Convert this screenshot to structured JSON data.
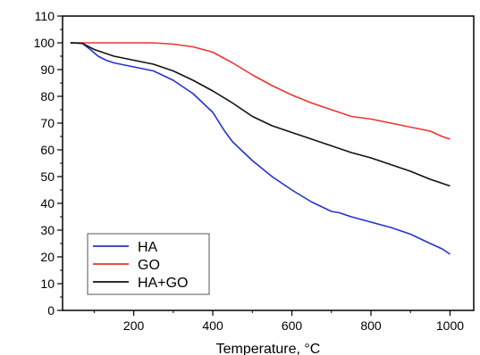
{
  "chart_data": {
    "type": "line",
    "xlabel": "Temperature, °C",
    "ylabel": "",
    "xlim": [
      20,
      1060
    ],
    "ylim": [
      0,
      110
    ],
    "xticks": [
      200,
      400,
      600,
      800,
      1000
    ],
    "yticks": [
      0,
      10,
      20,
      30,
      40,
      50,
      60,
      70,
      80,
      90,
      100,
      110
    ],
    "grid": false,
    "legend_position": "bottom-left",
    "series": [
      {
        "name": "HA",
        "color": "#2233cc",
        "points": [
          [
            40,
            100
          ],
          [
            70,
            99.8
          ],
          [
            90,
            97.5
          ],
          [
            110,
            95
          ],
          [
            130,
            93.5
          ],
          [
            150,
            92.5
          ],
          [
            200,
            91
          ],
          [
            250,
            89.5
          ],
          [
            300,
            86
          ],
          [
            350,
            81
          ],
          [
            400,
            74
          ],
          [
            430,
            67
          ],
          [
            450,
            63
          ],
          [
            500,
            56
          ],
          [
            550,
            50
          ],
          [
            600,
            45
          ],
          [
            650,
            40.5
          ],
          [
            700,
            37
          ],
          [
            720,
            36.5
          ],
          [
            750,
            35
          ],
          [
            800,
            33
          ],
          [
            850,
            31
          ],
          [
            900,
            28.5
          ],
          [
            950,
            25
          ],
          [
            980,
            23
          ],
          [
            1000,
            21
          ]
        ]
      },
      {
        "name": "GO",
        "color": "#ee3333",
        "points": [
          [
            40,
            100
          ],
          [
            100,
            100
          ],
          [
            200,
            100
          ],
          [
            250,
            100
          ],
          [
            300,
            99.5
          ],
          [
            350,
            98.5
          ],
          [
            400,
            96.5
          ],
          [
            450,
            92.5
          ],
          [
            500,
            88
          ],
          [
            550,
            84
          ],
          [
            600,
            80.5
          ],
          [
            650,
            77.5
          ],
          [
            700,
            75
          ],
          [
            750,
            72.5
          ],
          [
            800,
            71.5
          ],
          [
            850,
            70
          ],
          [
            900,
            68.5
          ],
          [
            950,
            67
          ],
          [
            980,
            65
          ],
          [
            1000,
            64
          ]
        ]
      },
      {
        "name": "HA+GO",
        "color": "#111111",
        "points": [
          [
            40,
            100
          ],
          [
            70,
            99.8
          ],
          [
            100,
            97.5
          ],
          [
            150,
            95
          ],
          [
            200,
            93.5
          ],
          [
            250,
            92
          ],
          [
            300,
            89.5
          ],
          [
            350,
            86
          ],
          [
            400,
            82
          ],
          [
            450,
            77.5
          ],
          [
            500,
            72.5
          ],
          [
            550,
            69
          ],
          [
            600,
            66.5
          ],
          [
            650,
            64
          ],
          [
            700,
            61.5
          ],
          [
            750,
            59
          ],
          [
            800,
            57
          ],
          [
            850,
            54.5
          ],
          [
            900,
            52
          ],
          [
            950,
            49
          ],
          [
            1000,
            46.5
          ]
        ]
      }
    ]
  }
}
